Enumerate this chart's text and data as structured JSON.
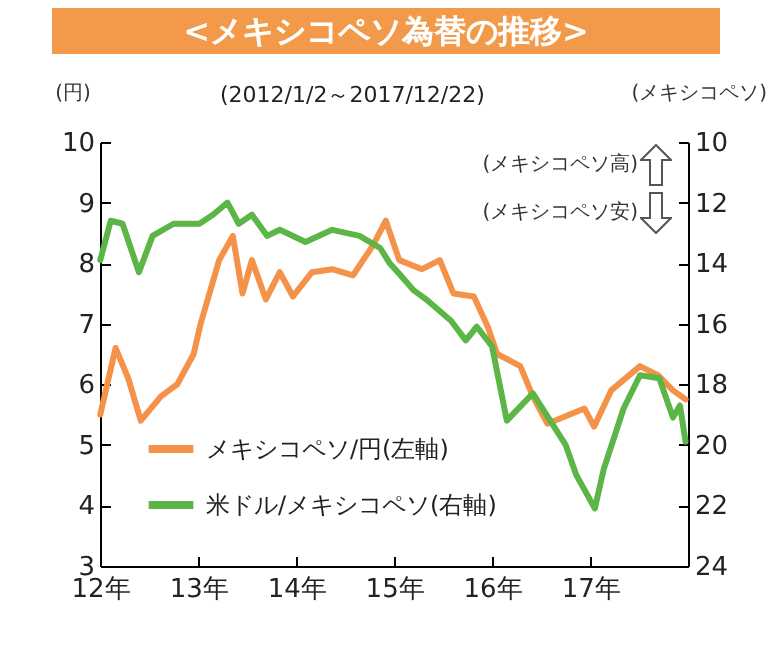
{
  "chart_data": {
    "type": "line",
    "title": "<メキシコペソ為替の推移>",
    "subtitle": "(2012/1/2～2017/12/22)",
    "ylabel": "(円)",
    "y2label": "(メキシコペソ)",
    "annotations": [
      "(メキシコペソ高)",
      "(メキシコペソ安)"
    ],
    "xlim": [
      "2012-01-01",
      "2017-12-31"
    ],
    "xticks": [
      {
        "value": "2012-01-01",
        "label": "12年"
      },
      {
        "value": "2013-01-01",
        "label": "13年"
      },
      {
        "value": "2014-01-01",
        "label": "14年"
      },
      {
        "value": "2015-01-01",
        "label": "15年"
      },
      {
        "value": "2016-01-01",
        "label": "16年"
      },
      {
        "value": "2017-01-01",
        "label": "17年"
      }
    ],
    "ylim": [
      3,
      10
    ],
    "yticks": [
      3,
      4,
      5,
      6,
      7,
      8,
      9,
      10
    ],
    "y2lim": [
      24,
      10
    ],
    "y2ticks": [
      10,
      12,
      14,
      16,
      18,
      20,
      22,
      24
    ],
    "legend": "bottom left",
    "marker": "none",
    "series": [
      {
        "name": "メキシコペソ/円(左軸)",
        "color": "#f4924a",
        "axis": "y",
        "x": [
          "2012-01-02",
          "2012-02-28",
          "2012-04-15",
          "2012-06-01",
          "2012-08-15",
          "2012-10-15",
          "2012-12-15",
          "2013-01-10",
          "2013-03-20",
          "2013-05-10",
          "2013-06-15",
          "2013-07-20",
          "2013-09-10",
          "2013-11-01",
          "2013-12-20",
          "2014-03-01",
          "2014-05-15",
          "2014-08-01",
          "2014-10-15",
          "2014-12-01",
          "2015-01-20",
          "2015-04-15",
          "2015-06-20",
          "2015-08-10",
          "2015-10-25",
          "2015-12-15",
          "2016-01-20",
          "2016-04-15",
          "2016-06-01",
          "2016-07-25",
          "2016-12-10",
          "2017-01-15",
          "2017-03-20",
          "2017-07-05",
          "2017-09-10",
          "2017-11-05",
          "2017-12-22"
        ],
        "values": [
          5.5,
          6.6,
          6.1,
          5.4,
          5.8,
          6.0,
          6.5,
          7.0,
          8.05,
          8.45,
          7.5,
          8.05,
          7.4,
          7.85,
          7.45,
          7.85,
          7.9,
          7.8,
          8.3,
          8.7,
          8.05,
          7.9,
          8.05,
          7.5,
          7.45,
          6.96,
          6.5,
          6.3,
          5.8,
          5.35,
          5.6,
          5.3,
          5.9,
          6.3,
          6.15,
          5.9,
          5.75
        ]
      },
      {
        "name": "米ドル/メキシコペソ(右軸)",
        "color": "#5cb547",
        "axis": "y2",
        "x": [
          "2012-01-02",
          "2012-02-10",
          "2012-03-25",
          "2012-05-25",
          "2012-07-15",
          "2012-10-01",
          "2013-01-05",
          "2013-02-25",
          "2013-04-20",
          "2013-06-01",
          "2013-07-20",
          "2013-09-15",
          "2013-11-01",
          "2014-02-05",
          "2014-05-15",
          "2014-08-25",
          "2014-11-10",
          "2014-12-15",
          "2015-01-20",
          "2015-03-15",
          "2015-05-01",
          "2015-08-01",
          "2015-09-25",
          "2015-11-05",
          "2016-01-01",
          "2016-01-20",
          "2016-02-25",
          "2016-06-01",
          "2016-10-01",
          "2016-11-10",
          "2017-01-18",
          "2017-02-20",
          "2017-05-05",
          "2017-07-05",
          "2017-09-15",
          "2017-11-05",
          "2017-12-01",
          "2017-12-22"
        ],
        "values": [
          13.9,
          12.6,
          12.7,
          14.3,
          13.1,
          12.7,
          12.7,
          12.4,
          12.0,
          12.7,
          12.4,
          13.1,
          12.9,
          13.3,
          12.9,
          13.1,
          13.5,
          14.0,
          14.35,
          14.9,
          15.2,
          15.9,
          16.55,
          16.1,
          16.75,
          17.6,
          19.2,
          18.3,
          20.0,
          21.0,
          22.1,
          20.8,
          18.8,
          17.7,
          17.8,
          19.1,
          18.7,
          19.9
        ]
      }
    ]
  }
}
